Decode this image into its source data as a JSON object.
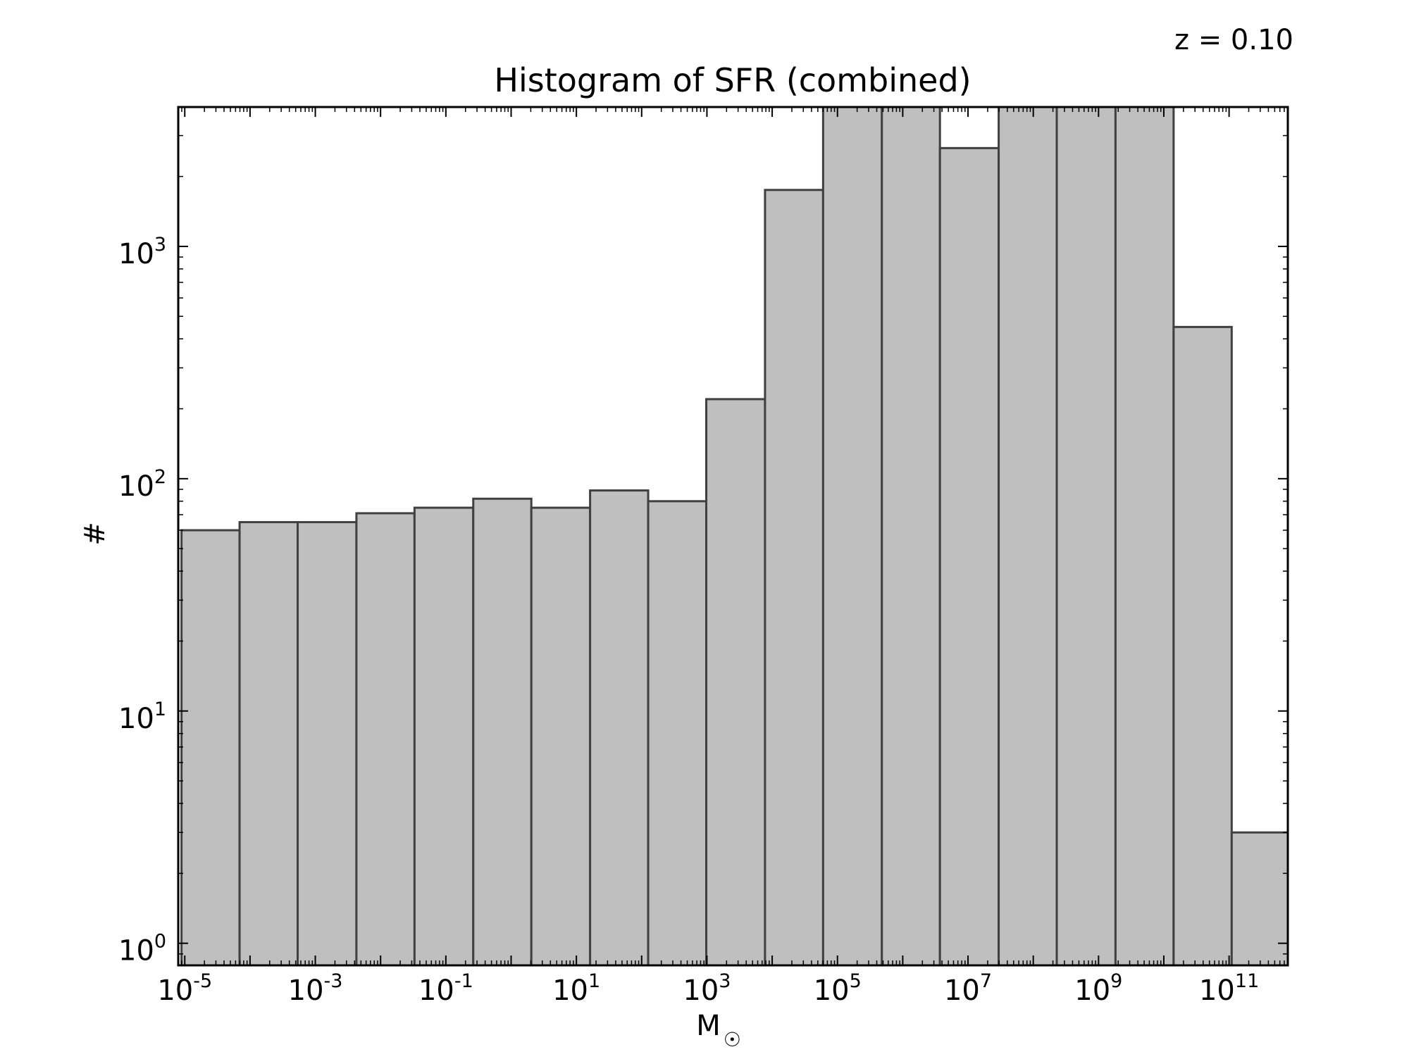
{
  "annotation": "z = 0.10",
  "chart_data": {
    "type": "bar",
    "title": "Histogram of SFR (combined)",
    "xlabel": "M",
    "xlabel_symbol": "☉",
    "ylabel": "#",
    "xscale": "log",
    "yscale": "log",
    "xlim_log10": [
      -5.1,
      11.9
    ],
    "ylim_log10": [
      -0.095,
      3.6
    ],
    "grid": false,
    "colors": {
      "bar_fill": "#bfbfbf",
      "bar_edge": "#404040"
    },
    "x_ticks": [
      {
        "base": "10",
        "exp": "-5",
        "log10": -5
      },
      {
        "base": "10",
        "exp": "-3",
        "log10": -3
      },
      {
        "base": "10",
        "exp": "-1",
        "log10": -1
      },
      {
        "base": "10",
        "exp": "1",
        "log10": 1
      },
      {
        "base": "10",
        "exp": "3",
        "log10": 3
      },
      {
        "base": "10",
        "exp": "5",
        "log10": 5
      },
      {
        "base": "10",
        "exp": "7",
        "log10": 7
      },
      {
        "base": "10",
        "exp": "9",
        "log10": 9
      },
      {
        "base": "10",
        "exp": "11",
        "log10": 11
      }
    ],
    "y_ticks": [
      {
        "base": "10",
        "exp": "0",
        "log10": 0
      },
      {
        "base": "10",
        "exp": "1",
        "log10": 1
      },
      {
        "base": "10",
        "exp": "2",
        "log10": 2
      },
      {
        "base": "10",
        "exp": "3",
        "log10": 3
      }
    ],
    "bins_log10": [
      [
        -5.05,
        -4.16
      ],
      [
        -4.16,
        -3.27
      ],
      [
        -3.27,
        -2.37
      ],
      [
        -2.37,
        -1.48
      ],
      [
        -1.48,
        -0.58
      ],
      [
        -0.58,
        0.31
      ],
      [
        0.31,
        1.21
      ],
      [
        1.21,
        2.1
      ],
      [
        2.1,
        2.99
      ],
      [
        2.99,
        3.89
      ],
      [
        3.89,
        4.78
      ],
      [
        4.78,
        5.68
      ],
      [
        5.68,
        6.57
      ],
      [
        6.57,
        7.47
      ],
      [
        7.47,
        8.36
      ],
      [
        8.36,
        9.26
      ],
      [
        9.26,
        10.15
      ],
      [
        10.15,
        11.04
      ],
      [
        11.04,
        11.94
      ]
    ],
    "values": [
      60,
      65,
      65,
      71,
      75,
      82,
      75,
      89,
      80,
      220,
      1750,
      5000,
      5000,
      2650,
      5000,
      5000,
      5000,
      450,
      3
    ]
  }
}
